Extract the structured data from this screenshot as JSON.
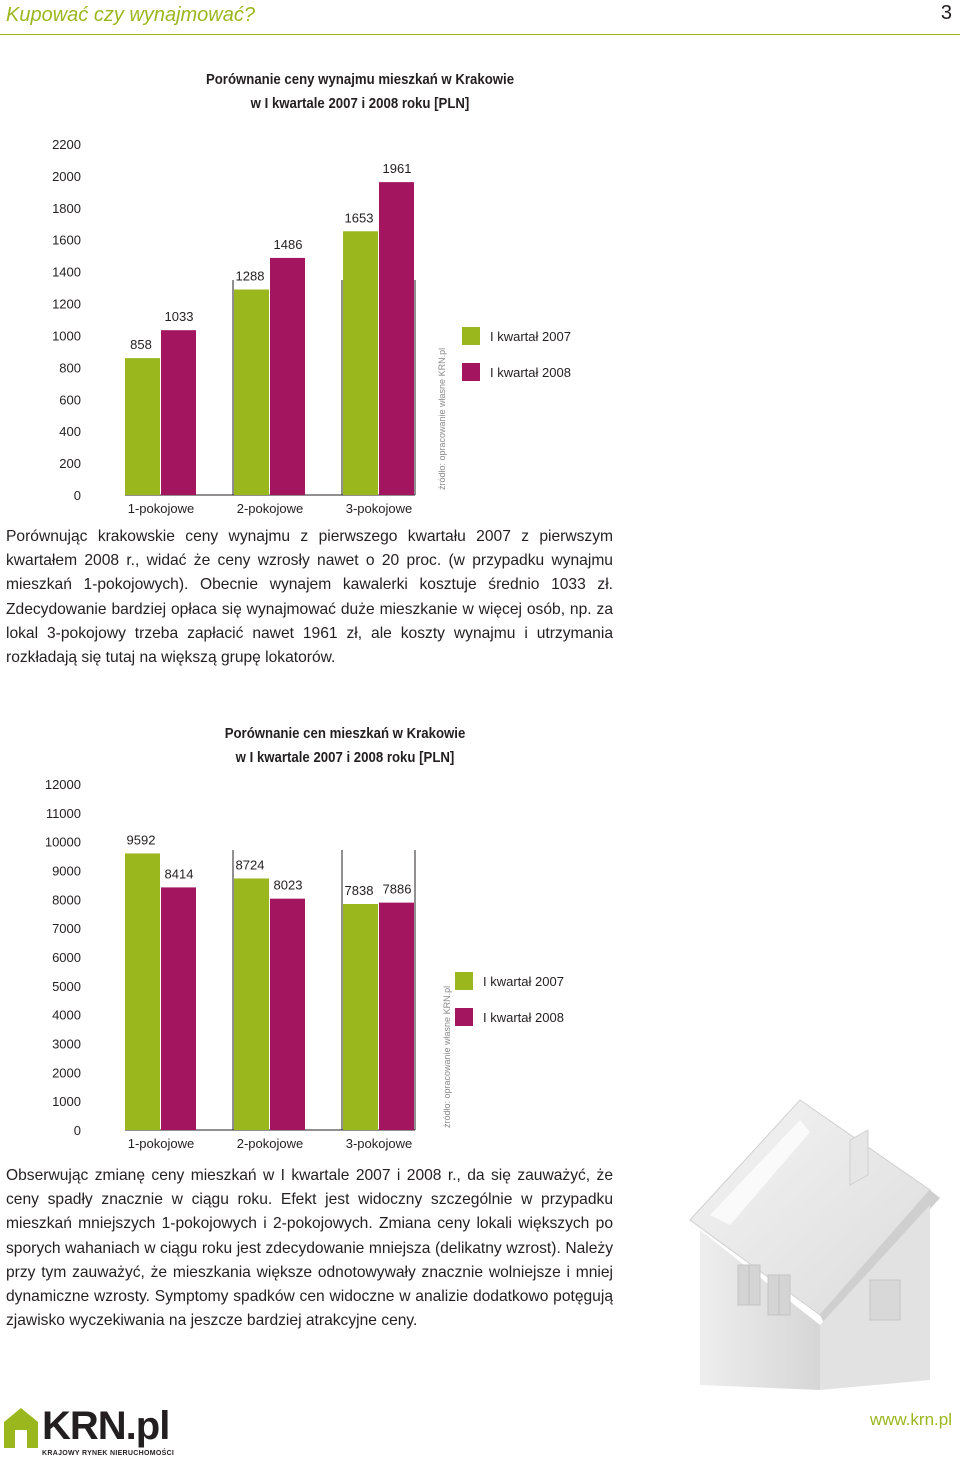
{
  "header": {
    "title": "Kupować czy wynajmować?",
    "page_number": "3"
  },
  "chart1": {
    "title_line1": "Porównanie ceny wynajmu mieszkań w Krakowie",
    "title_line2": "w I kwartale 2007 i 2008 roku [PLN]",
    "source": "źródło: opracowanie własne KRN.pl",
    "legend": [
      "I kwartał 2007",
      "I kwartał 2008"
    ]
  },
  "paragraph1": "Porównując krakowskie ceny wynajmu z pierwszego kwartału 2007 z pierwszym kwartałem 2008 r., widać że ceny wzrosły nawet o 20 proc. (w przypadku wynajmu mieszkań 1-pokojowych). Obecnie wynajem kawalerki kosztuje średnio 1033 zł. Zdecydowanie bardziej opłaca się wynajmować duże mieszkanie w więcej osób, np. za lokal 3-pokojowy trzeba zapłacić nawet 1961 zł, ale koszty wynajmu i utrzymania rozkładają się tutaj na większą grupę lokatorów.",
  "chart2": {
    "title_line1": "Porównanie cen mieszkań w Krakowie",
    "title_line2": "w I kwartale 2007 i 2008 roku [PLN]",
    "source": "źródło: opracowanie własne KRN.pl",
    "legend": [
      "I kwartał 2007",
      "I kwartał 2008"
    ]
  },
  "paragraph2": "Obserwując zmianę ceny mieszkań w I kwartale 2007 i 2008 r., da się zauważyć, że ceny spadły znacznie w ciągu roku. Efekt jest widoczny szczególnie w przypadku mieszkań mniejszych 1-pokojowych i 2-pokojowych. Zmiana ceny lokali większych po sporych wahaniach w ciągu roku jest zdecydowanie mniejsza (delikatny wzrost). Należy przy tym zauważyć, że mieszkania większe odnotowywały znacznie wolniejsze i mniej dynamiczne wzrosty. Symptomy spadków cen widoczne w analizie dodatkowo potęgują zjawisko wyczekiwania na jeszcze bardziej atrakcyjne ceny.",
  "footer": {
    "logo_text": "KRN.pl",
    "logo_sub": "KRAJOWY RYNEK NIERUCHOMOŚCI",
    "url": "www.krn.pl"
  },
  "colors": {
    "q2007": "#9ab81e",
    "q2008": "#a3155e",
    "accent": "#9ab81e"
  },
  "chart_data": [
    {
      "type": "bar",
      "categories": [
        "1-pokojowe",
        "2-pokojowe",
        "3-pokojowe"
      ],
      "series": [
        {
          "name": "I kwartał 2007",
          "values": [
            858,
            1288,
            1653
          ]
        },
        {
          "name": "I kwartał 2008",
          "values": [
            1033,
            1486,
            1961
          ]
        }
      ],
      "yticks": [
        0,
        200,
        400,
        600,
        800,
        1000,
        1200,
        1400,
        1600,
        1800,
        2000,
        2200
      ],
      "ylim": [
        0,
        2200
      ],
      "legend": "right",
      "grid": false
    },
    {
      "type": "bar",
      "categories": [
        "1-pokojowe",
        "2-pokojowe",
        "3-pokojowe"
      ],
      "series": [
        {
          "name": "I kwartał 2007",
          "values": [
            9592,
            8724,
            7838
          ]
        },
        {
          "name": "I kwartał 2008",
          "values": [
            8414,
            8023,
            7886
          ]
        }
      ],
      "yticks": [
        0,
        1000,
        2000,
        3000,
        4000,
        5000,
        6000,
        7000,
        8000,
        9000,
        10000,
        11000,
        12000
      ],
      "ylim": [
        0,
        12000
      ],
      "legend": "right",
      "grid": false
    }
  ]
}
